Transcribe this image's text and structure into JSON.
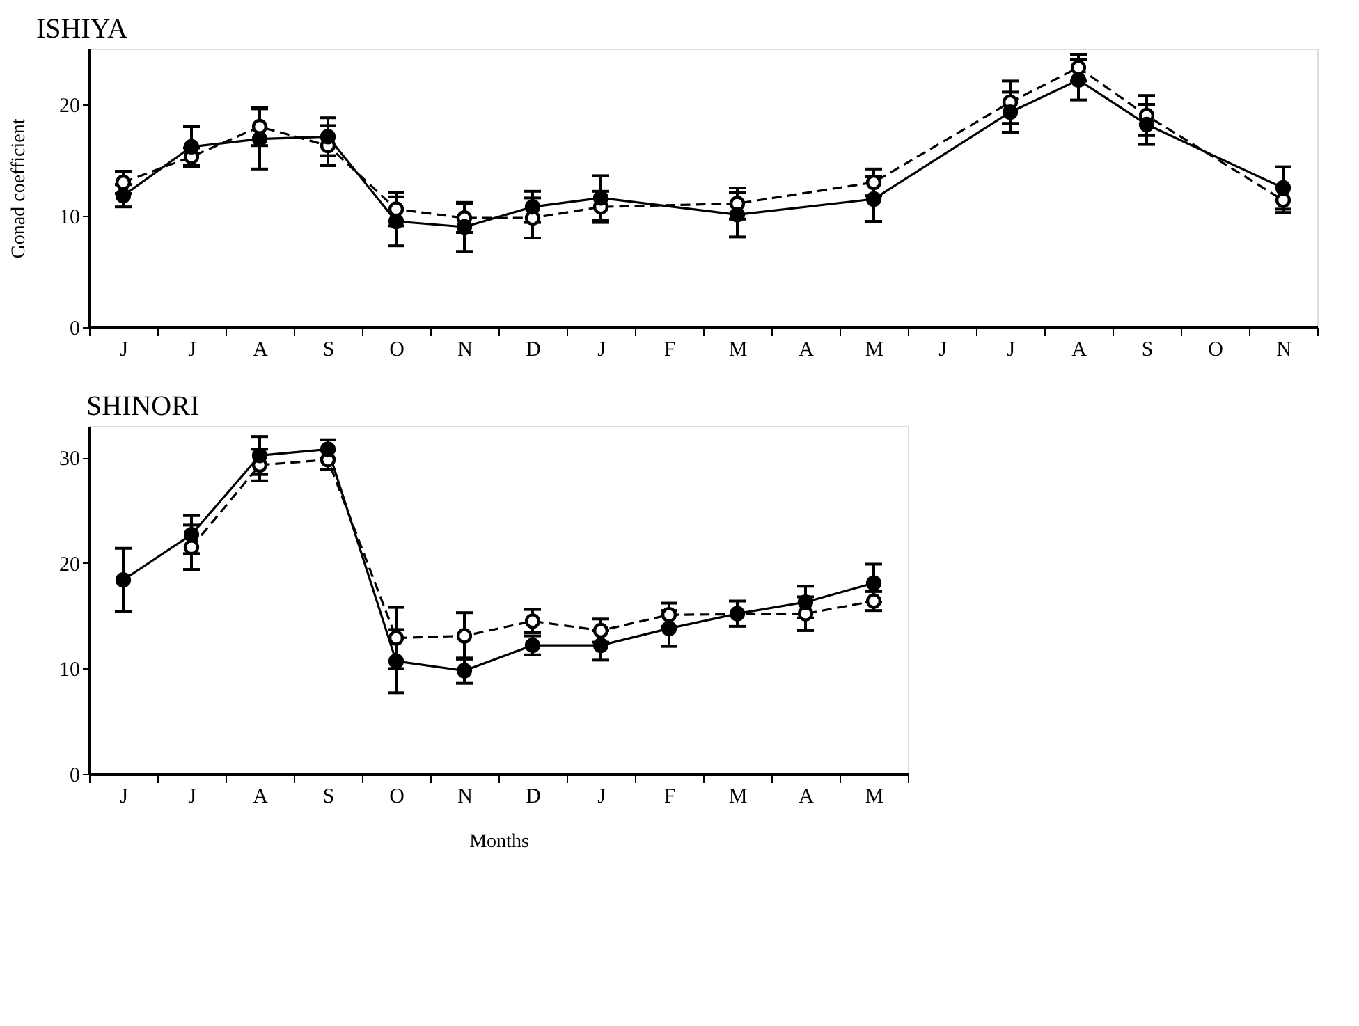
{
  "chart_data": [
    {
      "type": "line",
      "title": "ISHIYA",
      "ylabel": "Gonad coefficient",
      "categories": [
        "J",
        "J",
        "A",
        "S",
        "O",
        "N",
        "D",
        "J",
        "F",
        "M",
        "A",
        "M",
        "J",
        "J",
        "A",
        "S",
        "O",
        "N"
      ],
      "series": [
        {
          "color": "#000000",
          "marker": "circle",
          "line_style": "solid",
          "values": [
            11.8,
            16.2,
            16.9,
            17.1,
            9.5,
            9.0,
            10.8,
            11.6,
            null,
            10.1,
            null,
            11.5,
            null,
            19.3,
            22.2,
            18.2,
            null,
            12.5
          ],
          "errors": [
            1.0,
            1.8,
            2.7,
            1.7,
            2.2,
            2.2,
            1.4,
            2.0,
            null,
            2.0,
            null,
            2.0,
            null,
            1.8,
            1.8,
            1.8,
            null,
            1.9
          ]
        },
        {
          "color": "#000000",
          "marker": "circle",
          "line_style": "dashed",
          "values": [
            13.0,
            15.3,
            18.0,
            16.3,
            10.6,
            9.8,
            9.8,
            10.8,
            null,
            11.1,
            null,
            13.0,
            null,
            20.2,
            23.3,
            19.0,
            null,
            11.4
          ],
          "errors": [
            1.0,
            0.8,
            1.7,
            1.8,
            1.5,
            1.3,
            1.8,
            1.4,
            null,
            1.4,
            null,
            1.2,
            null,
            1.9,
            1.2,
            1.8,
            null,
            1.1
          ]
        }
      ],
      "ylim": [
        0,
        25
      ],
      "yticks": [
        0,
        10,
        20
      ]
    },
    {
      "type": "line",
      "title": "SHINORI",
      "xlabel": "Months",
      "categories": [
        "J",
        "J",
        "A",
        "S",
        "O",
        "N",
        "D",
        "J",
        "F",
        "M",
        "A",
        "M"
      ],
      "series": [
        {
          "color": "#000000",
          "marker": "circle",
          "line_style": "solid",
          "values": [
            18.4,
            22.7,
            30.2,
            30.8,
            10.7,
            9.8,
            12.2,
            12.2,
            13.8,
            15.2,
            16.3,
            18.1
          ],
          "errors": [
            3.0,
            1.8,
            1.8,
            0.9,
            3.0,
            1.2,
            0.9,
            1.4,
            1.7,
            1.2,
            1.5,
            1.8
          ]
        },
        {
          "color": "#000000",
          "marker": "circle",
          "line_style": "dashed",
          "values": [
            null,
            21.5,
            29.3,
            29.8,
            12.9,
            13.1,
            14.5,
            13.6,
            15.1,
            null,
            15.2,
            16.4
          ],
          "errors": [
            null,
            2.1,
            1.5,
            0.9,
            2.9,
            2.2,
            1.1,
            1.1,
            1.1,
            null,
            1.6,
            0.9
          ]
        }
      ],
      "ylim": [
        0,
        33
      ],
      "yticks": [
        0,
        10,
        20,
        30
      ]
    }
  ]
}
